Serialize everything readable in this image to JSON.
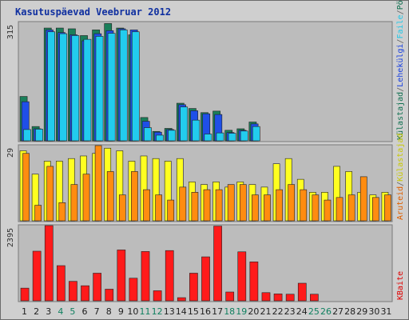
{
  "chart_data": {
    "type": "bar",
    "title": "Kasutuspäevad Veebruar 2012",
    "days": [
      "1",
      "2",
      "3",
      "4",
      "5",
      "6",
      "7",
      "8",
      "9",
      "10",
      "11",
      "12",
      "13",
      "14",
      "15",
      "16",
      "17",
      "18",
      "19",
      "20",
      "21",
      "22",
      "23",
      "24",
      "25",
      "26",
      "27",
      "28",
      "29",
      "30",
      "31"
    ],
    "weekend_days": [
      "4",
      "5",
      "11",
      "12",
      "18",
      "19",
      "25",
      "26"
    ],
    "panels": [
      {
        "id": "top",
        "max_label": "315",
        "ymax": 315,
        "legend": [
          {
            "text": "Külastajad",
            "color": "#107050"
          },
          {
            "text": "/",
            "color": "#606060"
          },
          {
            "text": "Lehekülgi",
            "color": "#1840e0"
          },
          {
            "text": "/",
            "color": "#606060"
          },
          {
            "text": "Faile",
            "color": "#20c8e8"
          },
          {
            "text": "/",
            "color": "#606060"
          },
          {
            "text": "Pöördumisi",
            "color": "#107050"
          }
        ],
        "series": [
          {
            "name": "Pöördumisi",
            "color": "#1a7f5a",
            "values": [
              118,
              38,
              300,
              300,
              298,
              280,
              295,
              312,
              300,
              282,
              62,
              25,
              33,
              100,
              86,
              75,
              79,
              28,
              32,
              50
            ]
          },
          {
            "name": "Lehekülgi",
            "color": "#1f4fe8",
            "values": [
              104,
              32,
              295,
              288,
              282,
              266,
              285,
              293,
              298,
              295,
              52,
              23,
              30,
              96,
              80,
              72,
              70,
              22,
              28,
              45
            ]
          },
          {
            "name": "Faile",
            "color": "#22ccee",
            "values": [
              30,
              31,
              290,
              285,
              280,
              270,
              278,
              286,
              295,
              290,
              35,
              15,
              28,
              90,
              55,
              18,
              21,
              20,
              26,
              38
            ]
          }
        ]
      },
      {
        "id": "middle",
        "max_label": "29",
        "ymax": 29,
        "legend": [
          {
            "text": "Aruteid",
            "color": "#e06000"
          },
          {
            "text": "/",
            "color": "#606060"
          },
          {
            "text": "Külastajad",
            "color": "#c8c800"
          }
        ],
        "series": [
          {
            "name": "Külastajad",
            "color": "#ffff20",
            "values": [
              27,
              18,
              23,
              23,
              24,
              25,
              26,
              28,
              27,
              23,
              25,
              24,
              23,
              24,
              15,
              14,
              15,
              13,
              15,
              14,
              13,
              22,
              24,
              16,
              11,
              11,
              21,
              19,
              11,
              10,
              11
            ]
          },
          {
            "name": "Aruteid",
            "color": "#ff8c10",
            "values": [
              26,
              6,
              21,
              7,
              14,
              18,
              29,
              19,
              10,
              19,
              12,
              10,
              8,
              13,
              11,
              12,
              12,
              14,
              14,
              10,
              10,
              12,
              14,
              12,
              10,
              8,
              9,
              10,
              17,
              9,
              10
            ]
          }
        ]
      },
      {
        "id": "bottom",
        "max_label": "2395",
        "ymax": 2395,
        "legend": [
          {
            "text": "KBaite",
            "color": "#e00000"
          }
        ],
        "series": [
          {
            "name": "KBaite",
            "color": "#ff1a1a",
            "values": [
              404,
              1580,
              2395,
              1120,
              620,
              480,
              880,
              370,
              1620,
              720,
              1570,
              320,
              1600,
              100,
              880,
              1400,
              2380,
              280,
              1560,
              1240,
              260,
              220,
              210,
              560,
              210
            ]
          }
        ]
      }
    ]
  }
}
